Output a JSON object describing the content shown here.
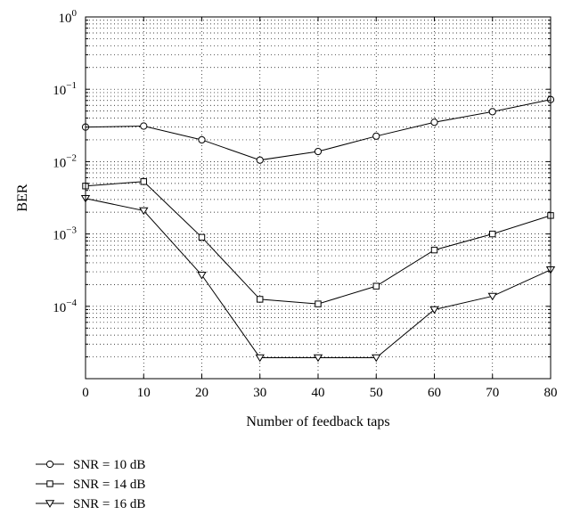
{
  "chart_data": {
    "type": "line",
    "title": "",
    "xlabel": "Number of feedback taps",
    "ylabel": "BER",
    "yscale": "log",
    "xlim": [
      0,
      80
    ],
    "ylim": [
      1e-05,
      1
    ],
    "grid": true,
    "legend_position": "below-left",
    "x": [
      0,
      10,
      20,
      30,
      40,
      50,
      60,
      70,
      80
    ],
    "x_ticks": [
      "0",
      "10",
      "20",
      "30",
      "40",
      "50",
      "60",
      "70",
      "80"
    ],
    "y_ticks": [
      {
        "value": 1,
        "base": "10",
        "exp": "0"
      },
      {
        "value": 0.1,
        "base": "10",
        "exp": "−1"
      },
      {
        "value": 0.01,
        "base": "10",
        "exp": "−2"
      },
      {
        "value": 0.001,
        "base": "10",
        "exp": "−3"
      },
      {
        "value": 0.0001,
        "base": "10",
        "exp": "−4"
      }
    ],
    "series": [
      {
        "name": "SNR = 10 dB",
        "marker": "circle",
        "values": [
          0.03,
          0.031,
          0.02,
          0.0105,
          0.0138,
          0.0225,
          0.035,
          0.049,
          0.072
        ]
      },
      {
        "name": "SNR = 14 dB",
        "marker": "square",
        "values": [
          0.0046,
          0.0053,
          0.0009,
          0.000125,
          0.000108,
          0.00019,
          0.0006,
          0.001,
          0.0018
        ]
      },
      {
        "name": "SNR = 16 dB",
        "marker": "triangle-down",
        "values": [
          0.0031,
          0.0021,
          0.00027,
          1.95e-05,
          1.95e-05,
          1.95e-05,
          9e-05,
          0.000138,
          0.00032
        ]
      }
    ]
  }
}
